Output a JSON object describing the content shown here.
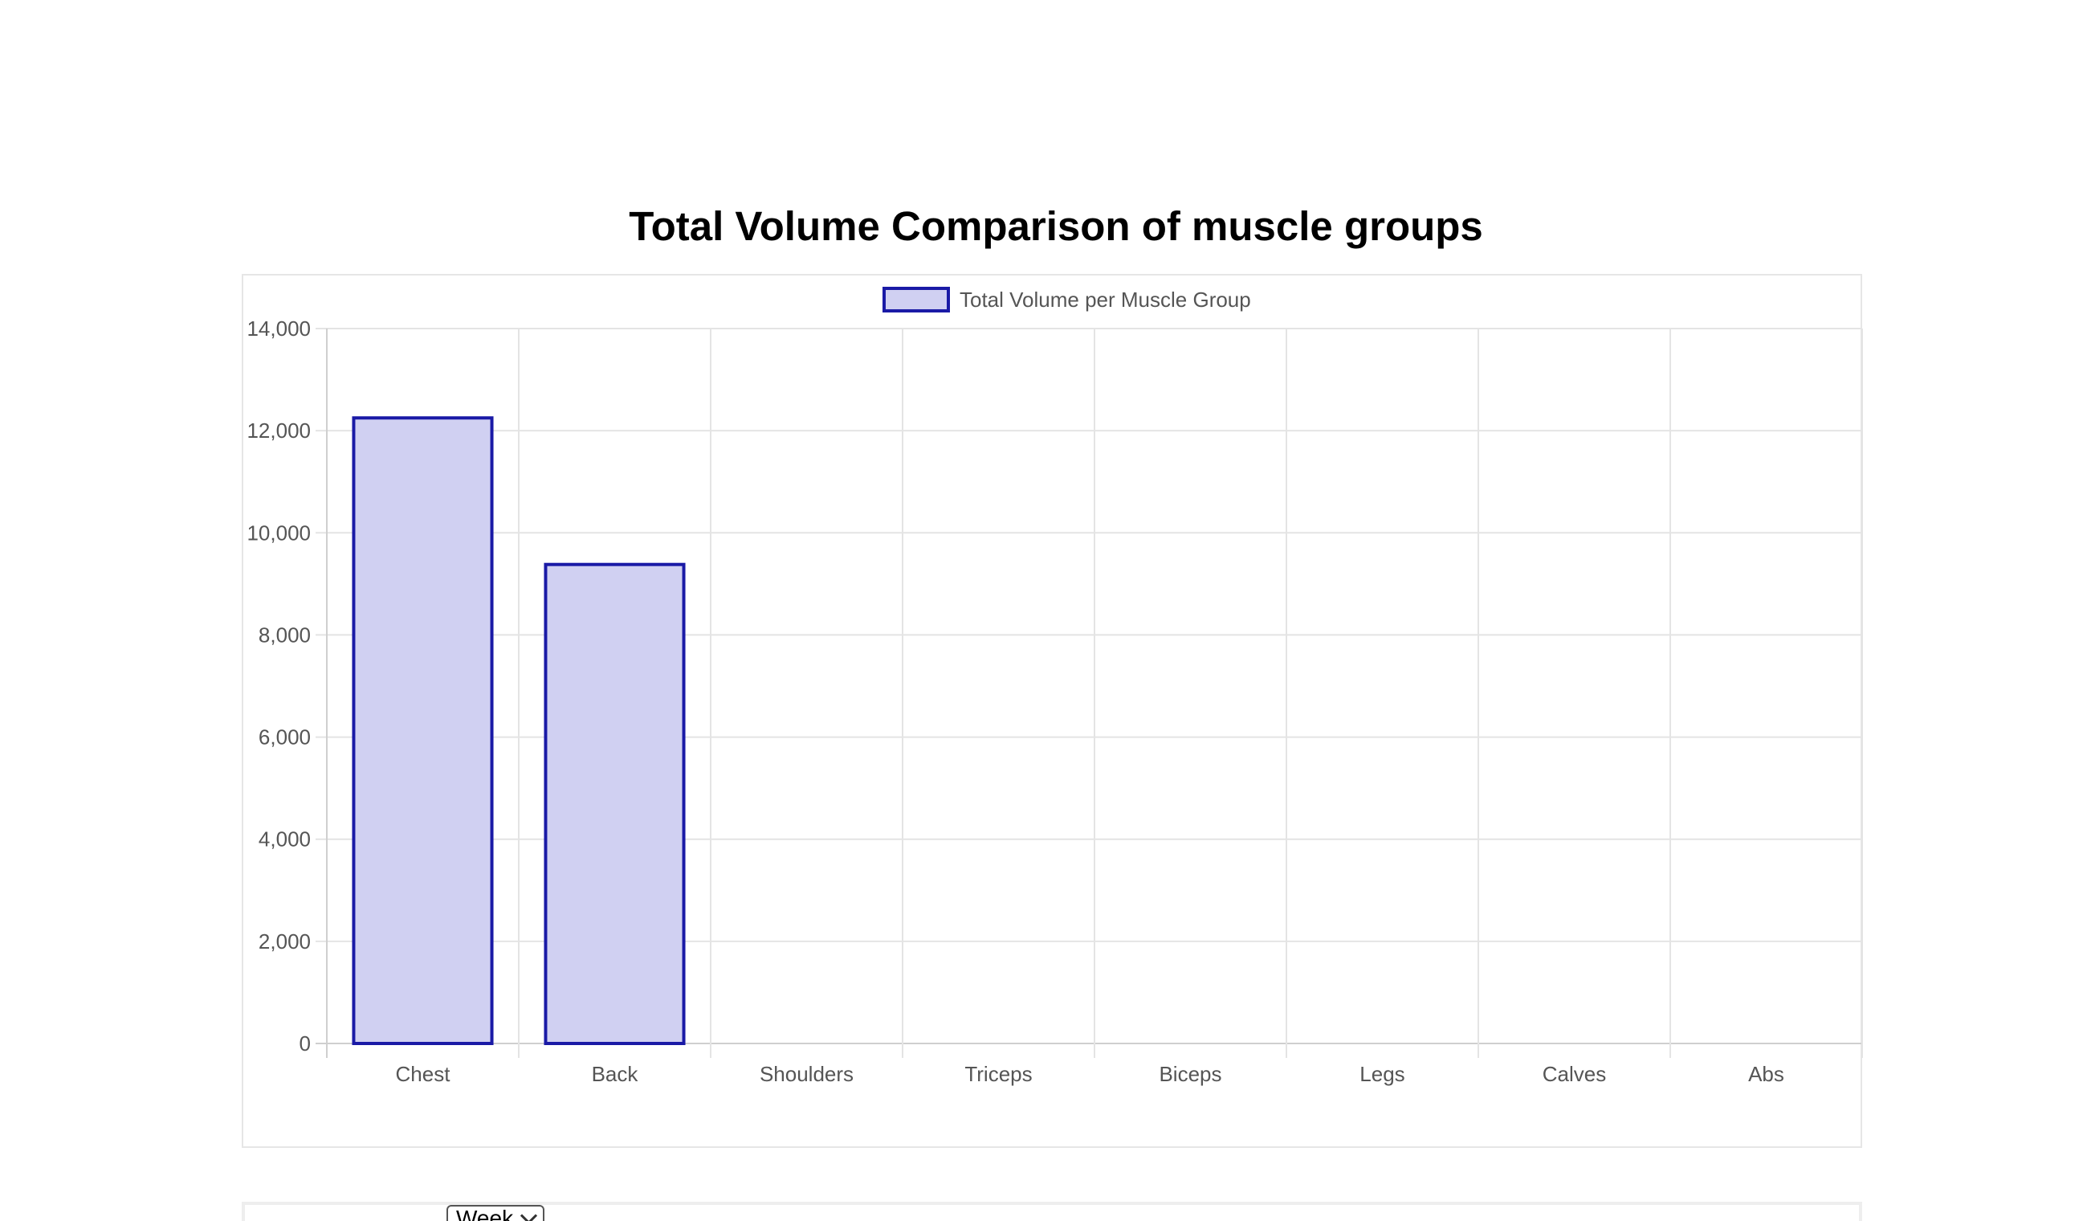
{
  "page": {
    "title": "Total Volume Comparison of muscle groups"
  },
  "controls": {
    "period_value": "Week"
  },
  "colors": {
    "bar_fill": "#d0d0f2",
    "bar_stroke": "#1a1aa6",
    "grid": "#e4e4e4",
    "axis": "#cfcfcf",
    "tick_text": "#555555"
  },
  "chart_data": {
    "type": "bar",
    "categories": [
      "Chest",
      "Back",
      "Shoulders",
      "Triceps",
      "Biceps",
      "Legs",
      "Calves",
      "Abs"
    ],
    "series": [
      {
        "name": "Total Volume per Muscle Group",
        "values": [
          12250,
          9380,
          0,
          0,
          0,
          0,
          0,
          0
        ]
      }
    ],
    "ylim": [
      0,
      14000
    ],
    "yticks": [
      "0",
      "2,000",
      "4,000",
      "6,000",
      "8,000",
      "10,000",
      "12,000",
      "14,000"
    ],
    "grid": true,
    "legend": "top-center"
  }
}
